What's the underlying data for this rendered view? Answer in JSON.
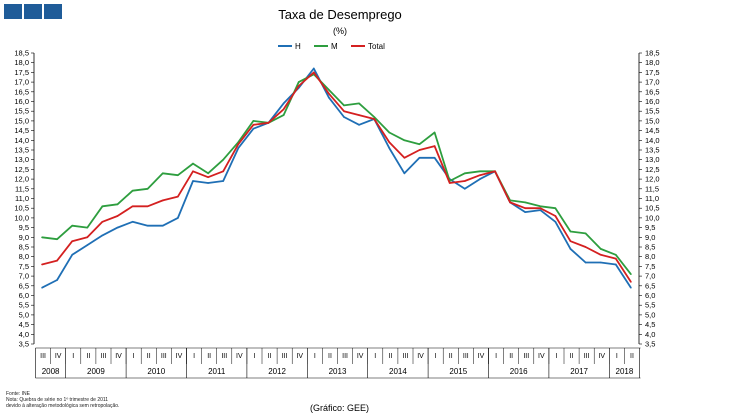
{
  "chart_data": {
    "type": "line",
    "title": "Taxa de Desemprego",
    "subtitle": "(%)",
    "xlabel": "",
    "ylabel": "",
    "ylim": [
      3.5,
      18.5
    ],
    "ystep": 0.5,
    "grid": false,
    "legend_position": "top-center",
    "categories": [
      "III",
      "IV",
      "I",
      "II",
      "III",
      "IV",
      "I",
      "II",
      "III",
      "IV",
      "I",
      "II",
      "III",
      "IV",
      "I",
      "II",
      "III",
      "IV",
      "I",
      "II",
      "III",
      "IV",
      "I",
      "II",
      "III",
      "IV",
      "I",
      "II",
      "III",
      "IV",
      "I",
      "II",
      "III",
      "IV",
      "I",
      "II",
      "III",
      "IV",
      "I",
      "II"
    ],
    "years": [
      {
        "label": "2008",
        "span": 2
      },
      {
        "label": "2009",
        "span": 4
      },
      {
        "label": "2010",
        "span": 4
      },
      {
        "label": "2011",
        "span": 4
      },
      {
        "label": "2012",
        "span": 4
      },
      {
        "label": "2013",
        "span": 4
      },
      {
        "label": "2014",
        "span": 4
      },
      {
        "label": "2015",
        "span": 4
      },
      {
        "label": "2016",
        "span": 4
      },
      {
        "label": "2017",
        "span": 4
      },
      {
        "label": "2018",
        "span": 2
      }
    ],
    "series": [
      {
        "name": "H",
        "color": "#1f6fb5",
        "values": [
          6.4,
          6.8,
          8.1,
          8.6,
          9.1,
          9.5,
          9.8,
          9.6,
          9.6,
          10.0,
          11.9,
          11.8,
          11.9,
          13.6,
          14.6,
          14.9,
          15.9,
          16.7,
          17.7,
          16.2,
          15.2,
          14.8,
          15.1,
          13.6,
          12.3,
          13.1,
          13.1,
          12.0,
          11.5,
          12.0,
          12.4,
          10.8,
          10.3,
          10.4,
          9.8,
          8.4,
          7.7,
          7.7,
          7.6,
          6.4
        ]
      },
      {
        "name": "M",
        "color": "#2e9e3f",
        "values": [
          9.0,
          8.9,
          9.6,
          9.5,
          10.6,
          10.7,
          11.4,
          11.5,
          12.3,
          12.2,
          12.8,
          12.3,
          13.0,
          13.9,
          15.0,
          14.9,
          15.3,
          17.0,
          17.4,
          16.6,
          15.8,
          15.9,
          15.2,
          14.4,
          14.0,
          13.8,
          14.4,
          11.9,
          12.3,
          12.4,
          12.4,
          10.9,
          10.8,
          10.6,
          10.5,
          9.3,
          9.2,
          8.4,
          8.1,
          7.1
        ]
      },
      {
        "name": "Total",
        "color": "#d42020",
        "values": [
          7.6,
          7.8,
          8.8,
          9.0,
          9.8,
          10.1,
          10.6,
          10.6,
          10.9,
          11.1,
          12.4,
          12.1,
          12.4,
          13.8,
          14.8,
          14.9,
          15.6,
          16.8,
          17.5,
          16.4,
          15.5,
          15.3,
          15.1,
          13.9,
          13.1,
          13.5,
          13.7,
          11.8,
          11.9,
          12.2,
          12.4,
          10.8,
          10.5,
          10.5,
          10.1,
          8.8,
          8.5,
          8.1,
          7.9,
          6.7
        ]
      }
    ]
  },
  "footnotes": {
    "source": "Fonte: INE",
    "note_line1": "Nota: Quebra de série no 1º trimestre de 2011",
    "note_line2": "devido à alteração metodológica sem retropolação."
  },
  "credit": "(Gráfico: GEE)"
}
